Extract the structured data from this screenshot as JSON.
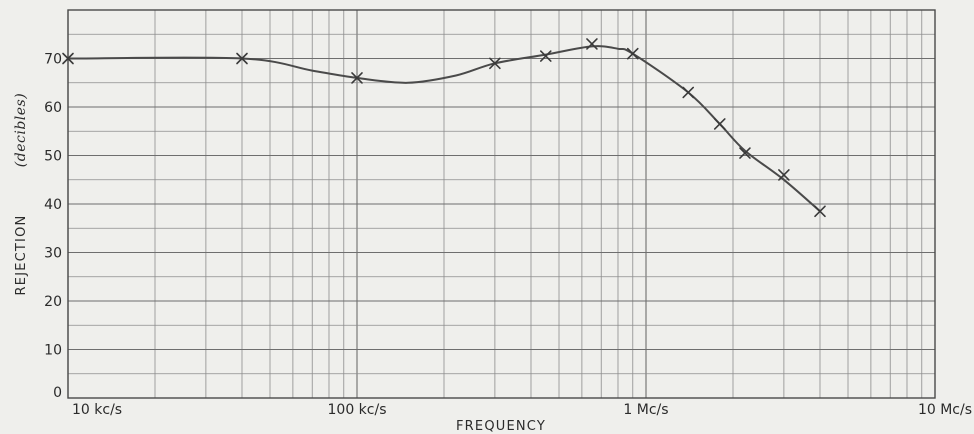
{
  "chart_data": {
    "type": "line",
    "x_scale": "log",
    "xlim": [
      10000,
      10000000
    ],
    "ylim": [
      0,
      80
    ],
    "grid": true,
    "xlabel": "FREQUENCY",
    "ylabel": "REJECTION",
    "ylabel_unit": "(decibles)",
    "x_ticks": [
      {
        "value": 10000,
        "label": "10 kc/s"
      },
      {
        "value": 100000,
        "label": "100 kc/s"
      },
      {
        "value": 1000000,
        "label": "1 Mc/s"
      },
      {
        "value": 10000000,
        "label": "10 Mc/s"
      }
    ],
    "y_ticks": [
      {
        "value": 0,
        "label": "0"
      },
      {
        "value": 10,
        "label": "10"
      },
      {
        "value": 20,
        "label": "20"
      },
      {
        "value": 30,
        "label": "30"
      },
      {
        "value": 40,
        "label": "40"
      },
      {
        "value": 50,
        "label": "50"
      },
      {
        "value": 60,
        "label": "60"
      },
      {
        "value": 70,
        "label": "70"
      }
    ],
    "measured_points": [
      {
        "x": 10000,
        "y": 70
      },
      {
        "x": 40000,
        "y": 70
      },
      {
        "x": 100000,
        "y": 66
      },
      {
        "x": 300000,
        "y": 69
      },
      {
        "x": 450000,
        "y": 70.5
      },
      {
        "x": 650000,
        "y": 73
      },
      {
        "x": 900000,
        "y": 71
      },
      {
        "x": 1400000,
        "y": 63
      },
      {
        "x": 1800000,
        "y": 56.5
      },
      {
        "x": 2200000,
        "y": 50.5
      },
      {
        "x": 3000000,
        "y": 46
      },
      {
        "x": 4000000,
        "y": 38.5
      }
    ],
    "curve": [
      {
        "x": 10000,
        "y": 70
      },
      {
        "x": 40000,
        "y": 70
      },
      {
        "x": 70000,
        "y": 67.5
      },
      {
        "x": 100000,
        "y": 66
      },
      {
        "x": 150000,
        "y": 65
      },
      {
        "x": 220000,
        "y": 66.5
      },
      {
        "x": 300000,
        "y": 69
      },
      {
        "x": 450000,
        "y": 70.8
      },
      {
        "x": 650000,
        "y": 72.5
      },
      {
        "x": 800000,
        "y": 72
      },
      {
        "x": 900000,
        "y": 71
      },
      {
        "x": 1400000,
        "y": 63
      },
      {
        "x": 1800000,
        "y": 56.5
      },
      {
        "x": 2200000,
        "y": 51
      },
      {
        "x": 3000000,
        "y": 45
      },
      {
        "x": 4000000,
        "y": 38.5
      }
    ]
  }
}
